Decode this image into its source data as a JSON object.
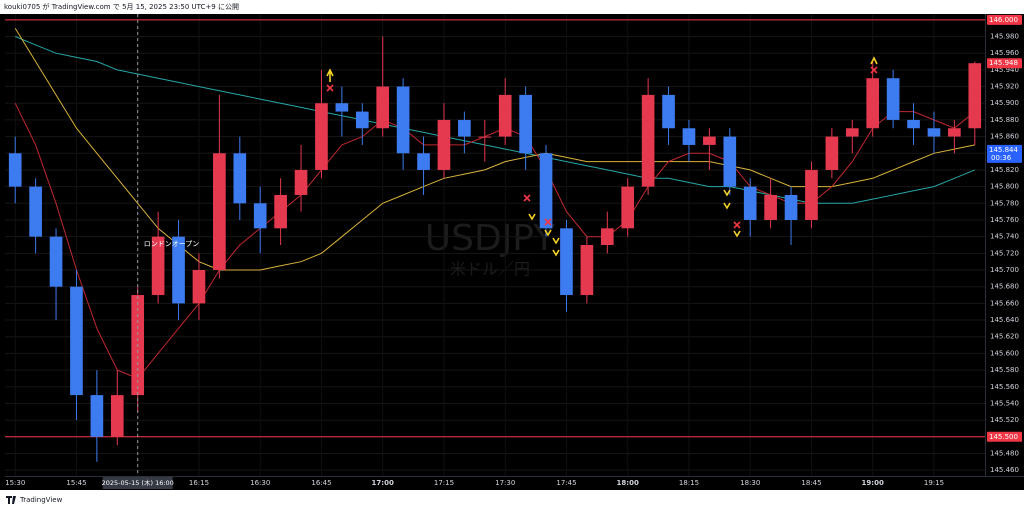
{
  "header": {
    "text": "kouki0705 が TradingView.com で 5月 15, 2025 23:50 UTC+9 に公開"
  },
  "footer": {
    "brand": "TradingView"
  },
  "chart_data": {
    "type": "candlestick",
    "watermark": {
      "symbol": "USDJPY",
      "description": "米ドル／円"
    },
    "annotation": "ロンドンオープン",
    "crosshair": {
      "label": "2025-05-15 (木) 16:00"
    },
    "categories": [
      "15:30",
      null,
      null,
      "15:45",
      null,
      null,
      "16:00",
      null,
      null,
      "16:15",
      null,
      null,
      "16:30",
      null,
      null,
      "16:45",
      null,
      null,
      "17:00",
      null,
      null,
      "17:15",
      null,
      null,
      "17:30",
      null,
      null,
      "17:45",
      null,
      null,
      "18:00",
      null,
      null,
      "18:15",
      null,
      null,
      "18:30",
      null,
      null,
      "18:45",
      null,
      null,
      "19:00",
      null,
      null,
      "19:15",
      null,
      null
    ],
    "up_color": "#e5394f",
    "down_color": "#3d7cf0",
    "open": [
      145.84,
      145.8,
      145.74,
      145.68,
      145.55,
      145.5,
      145.55,
      145.67,
      145.74,
      145.66,
      145.7,
      145.84,
      145.78,
      145.75,
      145.79,
      145.82,
      145.9,
      145.89,
      145.87,
      145.92,
      145.84,
      145.82,
      145.88,
      145.86,
      145.86,
      145.91,
      145.84,
      145.75,
      145.67,
      145.73,
      145.75,
      145.8,
      145.91,
      145.87,
      145.85,
      145.86,
      145.8,
      145.76,
      145.79,
      145.76,
      145.82,
      145.86,
      145.87,
      145.93,
      145.88,
      145.87,
      145.86,
      145.87
    ],
    "high": [
      145.86,
      145.81,
      145.75,
      145.7,
      145.58,
      145.58,
      145.68,
      145.77,
      145.76,
      145.72,
      145.91,
      145.86,
      145.8,
      145.81,
      145.85,
      145.94,
      145.92,
      145.9,
      145.98,
      145.93,
      145.86,
      145.9,
      145.89,
      145.88,
      145.93,
      145.92,
      145.85,
      145.76,
      145.74,
      145.77,
      145.81,
      145.93,
      145.92,
      145.88,
      145.87,
      145.87,
      145.81,
      145.81,
      145.8,
      145.83,
      145.87,
      145.88,
      145.95,
      145.94,
      145.9,
      145.89,
      145.88,
      145.95
    ],
    "low": [
      145.78,
      145.72,
      145.64,
      145.52,
      145.47,
      145.49,
      145.53,
      145.66,
      145.64,
      145.64,
      145.69,
      145.76,
      145.72,
      145.73,
      145.77,
      145.81,
      145.86,
      145.85,
      145.86,
      145.82,
      145.79,
      145.81,
      145.84,
      145.83,
      145.85,
      145.82,
      145.74,
      145.65,
      145.66,
      145.72,
      145.74,
      145.79,
      145.85,
      145.83,
      145.82,
      145.79,
      145.74,
      145.75,
      145.73,
      145.75,
      145.81,
      145.84,
      145.86,
      145.87,
      145.85,
      145.84,
      145.84,
      145.85
    ],
    "close": [
      145.8,
      145.74,
      145.68,
      145.55,
      145.5,
      145.55,
      145.67,
      145.74,
      145.66,
      145.7,
      145.84,
      145.78,
      145.75,
      145.79,
      145.82,
      145.9,
      145.89,
      145.87,
      145.92,
      145.84,
      145.82,
      145.88,
      145.86,
      145.86,
      145.91,
      145.84,
      145.75,
      145.67,
      145.73,
      145.75,
      145.8,
      145.91,
      145.87,
      145.85,
      145.86,
      145.8,
      145.76,
      145.79,
      145.76,
      145.82,
      145.86,
      145.87,
      145.93,
      145.88,
      145.87,
      145.86,
      145.87,
      145.948
    ],
    "moving_averages": [
      {
        "color": "#26a6a6",
        "values": [
          145.98,
          145.97,
          145.96,
          145.955,
          145.95,
          145.94,
          145.935,
          145.93,
          145.925,
          145.92,
          145.915,
          145.91,
          145.905,
          145.9,
          145.895,
          145.89,
          145.885,
          145.88,
          145.875,
          145.87,
          145.865,
          145.86,
          145.855,
          145.85,
          145.845,
          145.84,
          145.835,
          145.83,
          145.825,
          145.82,
          145.815,
          145.81,
          145.81,
          145.805,
          145.8,
          145.8,
          145.795,
          145.79,
          145.785,
          145.78,
          145.78,
          145.78,
          145.785,
          145.79,
          145.795,
          145.8,
          145.81,
          145.82
        ]
      },
      {
        "color": "#d9b23a",
        "values": [
          145.99,
          145.95,
          145.91,
          145.87,
          145.84,
          145.81,
          145.78,
          145.75,
          145.73,
          145.71,
          145.7,
          145.7,
          145.7,
          145.705,
          145.71,
          145.72,
          145.74,
          145.76,
          145.78,
          145.79,
          145.8,
          145.81,
          145.815,
          145.82,
          145.83,
          145.835,
          145.84,
          145.835,
          145.83,
          145.83,
          145.83,
          145.83,
          145.83,
          145.83,
          145.83,
          145.825,
          145.82,
          145.81,
          145.8,
          145.8,
          145.8,
          145.805,
          145.81,
          145.82,
          145.83,
          145.84,
          145.845,
          145.85
        ]
      },
      {
        "color": "#c0282e",
        "values": [
          145.9,
          145.85,
          145.78,
          145.7,
          145.63,
          145.58,
          145.57,
          145.6,
          145.63,
          145.66,
          145.7,
          145.73,
          145.75,
          145.77,
          145.79,
          145.82,
          145.85,
          145.86,
          145.88,
          145.87,
          145.85,
          145.85,
          145.85,
          145.86,
          145.87,
          145.86,
          145.82,
          145.77,
          145.74,
          145.74,
          145.76,
          145.8,
          145.83,
          145.84,
          145.84,
          145.83,
          145.8,
          145.79,
          145.78,
          145.78,
          145.8,
          145.83,
          145.87,
          145.89,
          145.89,
          145.88,
          145.87,
          145.89
        ]
      }
    ],
    "hlines": [
      {
        "value": 146.0,
        "label": "146.000",
        "color": "#f23645"
      },
      {
        "value": 145.5,
        "label": "145.500",
        "color": "#f23645"
      }
    ],
    "last_price": {
      "value": 145.948,
      "label": "145.948",
      "color": "#f23645"
    },
    "ma_price": {
      "value": 145.844,
      "label": "145.844",
      "countdown": "00:36",
      "color": "#2962ff"
    },
    "ylim": [
      145.453,
      146.007
    ],
    "yticks": [
      {
        "value": 145.46,
        "label": "145.460"
      },
      {
        "value": 145.48,
        "label": "145.480"
      },
      {
        "value": 145.5,
        "label": "145.500"
      },
      {
        "value": 145.52,
        "label": "145.520"
      },
      {
        "value": 145.54,
        "label": "145.540"
      },
      {
        "value": 145.56,
        "label": "145.560"
      },
      {
        "value": 145.58,
        "label": "145.580"
      },
      {
        "value": 145.6,
        "label": "145.600"
      },
      {
        "value": 145.62,
        "label": "145.620"
      },
      {
        "value": 145.64,
        "label": "145.640"
      },
      {
        "value": 145.66,
        "label": "145.660"
      },
      {
        "value": 145.68,
        "label": "145.680"
      },
      {
        "value": 145.7,
        "label": "145.700"
      },
      {
        "value": 145.72,
        "label": "145.720"
      },
      {
        "value": 145.74,
        "label": "145.740"
      },
      {
        "value": 145.76,
        "label": "145.760"
      },
      {
        "value": 145.78,
        "label": "145.780"
      },
      {
        "value": 145.8,
        "label": "145.800"
      },
      {
        "value": 145.82,
        "label": "145.820"
      },
      {
        "value": 145.84,
        "label": "145.840"
      },
      {
        "value": 145.86,
        "label": "145.860"
      },
      {
        "value": 145.88,
        "label": "145.880"
      },
      {
        "value": 145.9,
        "label": "145.900"
      },
      {
        "value": 145.92,
        "label": "145.920"
      },
      {
        "value": 145.94,
        "label": "145.940"
      },
      {
        "value": 145.96,
        "label": "145.960"
      },
      {
        "value": 145.98,
        "label": "145.980"
      },
      {
        "value": 146.0,
        "label": "146.000"
      }
    ],
    "grid": true
  }
}
